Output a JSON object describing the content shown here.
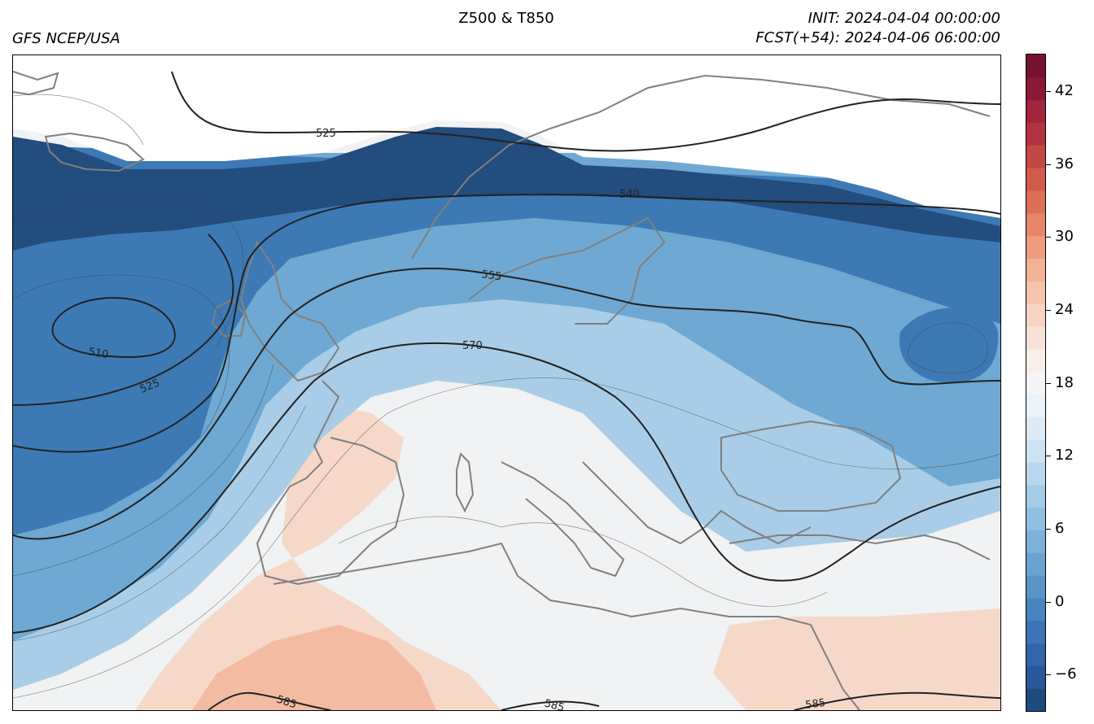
{
  "header": {
    "title": "Z500 & T850",
    "source": "GFS NCEP/USA",
    "init": "INIT: 2024-04-04 00:00:00",
    "forecast": "FCST(+54): 2024-04-06 06:00:00"
  },
  "map": {
    "region": "Europe, North Atlantic and North Africa",
    "contour_labels": [
      "525",
      "540",
      "555",
      "510",
      "525",
      "570",
      "585",
      "585",
      "585"
    ],
    "colors": {
      "coastline": "#808080",
      "contour": "#222222",
      "very_cold": "#234c7f",
      "cold": "#3d7ab5",
      "cool": "#6fa8d2",
      "mild": "#a9cde6",
      "neutral": "#f1f2f3",
      "warm": "#f6d8c9",
      "hot": "#f2bba2"
    }
  },
  "colorbar": {
    "min": -9,
    "max": 45,
    "ticks": [
      "−6",
      "0",
      "6",
      "12",
      "18",
      "24",
      "30",
      "36",
      "42"
    ],
    "tick_values": [
      -6,
      0,
      6,
      12,
      18,
      24,
      30,
      36,
      42
    ],
    "colors": [
      "#1f4a7e",
      "#28579a",
      "#3266a8",
      "#3b75b5",
      "#4784c0",
      "#5994c9",
      "#6aa3d1",
      "#7cb1da",
      "#90bfe1",
      "#a4cbe7",
      "#b8d7ec",
      "#cbe2f1",
      "#dcebf5",
      "#ebf2f8",
      "#f5f5f5",
      "#f8eee9",
      "#f8e2d8",
      "#f8d3c2",
      "#f6c3ac",
      "#f3b295",
      "#ee9c7e",
      "#e68669",
      "#dc6f56",
      "#d05a4b",
      "#c34743",
      "#b33440",
      "#a1253c",
      "#8b1836",
      "#761330"
    ]
  }
}
